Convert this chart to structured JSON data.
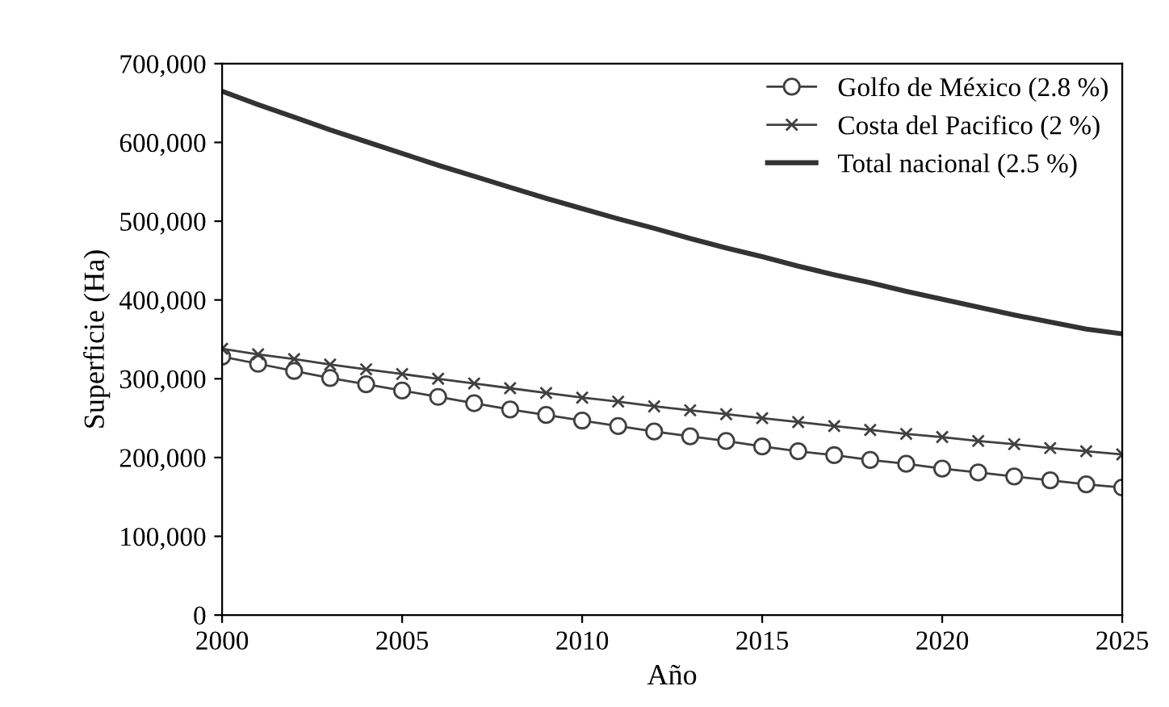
{
  "chart_data": {
    "type": "line",
    "xlabel": "Año",
    "ylabel": "Superficie (Ha)",
    "x": [
      2000,
      2001,
      2002,
      2003,
      2004,
      2005,
      2006,
      2007,
      2008,
      2009,
      2010,
      2011,
      2012,
      2013,
      2014,
      2015,
      2016,
      2017,
      2018,
      2019,
      2020,
      2021,
      2022,
      2023,
      2024,
      2025
    ],
    "series": [
      {
        "name": "Golfo de México (2.8 %)",
        "color": "#404040",
        "marker": "circle",
        "values": [
          328000,
          319000,
          310000,
          301000,
          293000,
          285000,
          277000,
          269000,
          261000,
          254000,
          247000,
          240000,
          233000,
          227000,
          221000,
          214000,
          208000,
          203000,
          197000,
          192000,
          186000,
          181000,
          176000,
          171000,
          166000,
          162000
        ]
      },
      {
        "name": "Costa del Pacifico (2 %)",
        "color": "#404040",
        "marker": "cross",
        "values": [
          338000,
          331000,
          325000,
          318000,
          312000,
          306000,
          300000,
          294000,
          288000,
          282000,
          276000,
          271000,
          265000,
          260000,
          255000,
          250000,
          245000,
          240000,
          235000,
          230000,
          226000,
          221000,
          217000,
          212000,
          208000,
          204000
        ]
      },
      {
        "name": "Total nacional (2.5 %)",
        "color": "#333333",
        "marker": "none",
        "values": [
          665000,
          648000,
          632000,
          616000,
          601000,
          586000,
          571000,
          557000,
          543000,
          529000,
          516000,
          503000,
          491000,
          478000,
          466000,
          455000,
          443000,
          432000,
          422000,
          411000,
          401000,
          391000,
          381000,
          372000,
          363000,
          357000
        ]
      }
    ],
    "xlim": [
      2000,
      2025
    ],
    "xticks": [
      2000,
      2005,
      2010,
      2015,
      2020,
      2025
    ],
    "ylim": [
      0,
      700000
    ],
    "yticks": [
      0,
      {
        "value": 100000,
        "label": "100,000"
      },
      {
        "value": 200000,
        "label": "200,000"
      },
      {
        "value": 300000,
        "label": "300,000"
      },
      {
        "value": 400000,
        "label": "400,000"
      },
      {
        "value": 500000,
        "label": "500,000"
      },
      {
        "value": 600000,
        "label": "600,000"
      },
      {
        "value": 700000,
        "label": "700,000"
      }
    ],
    "grid": false,
    "legend": "top right",
    "line_style": "solid"
  }
}
